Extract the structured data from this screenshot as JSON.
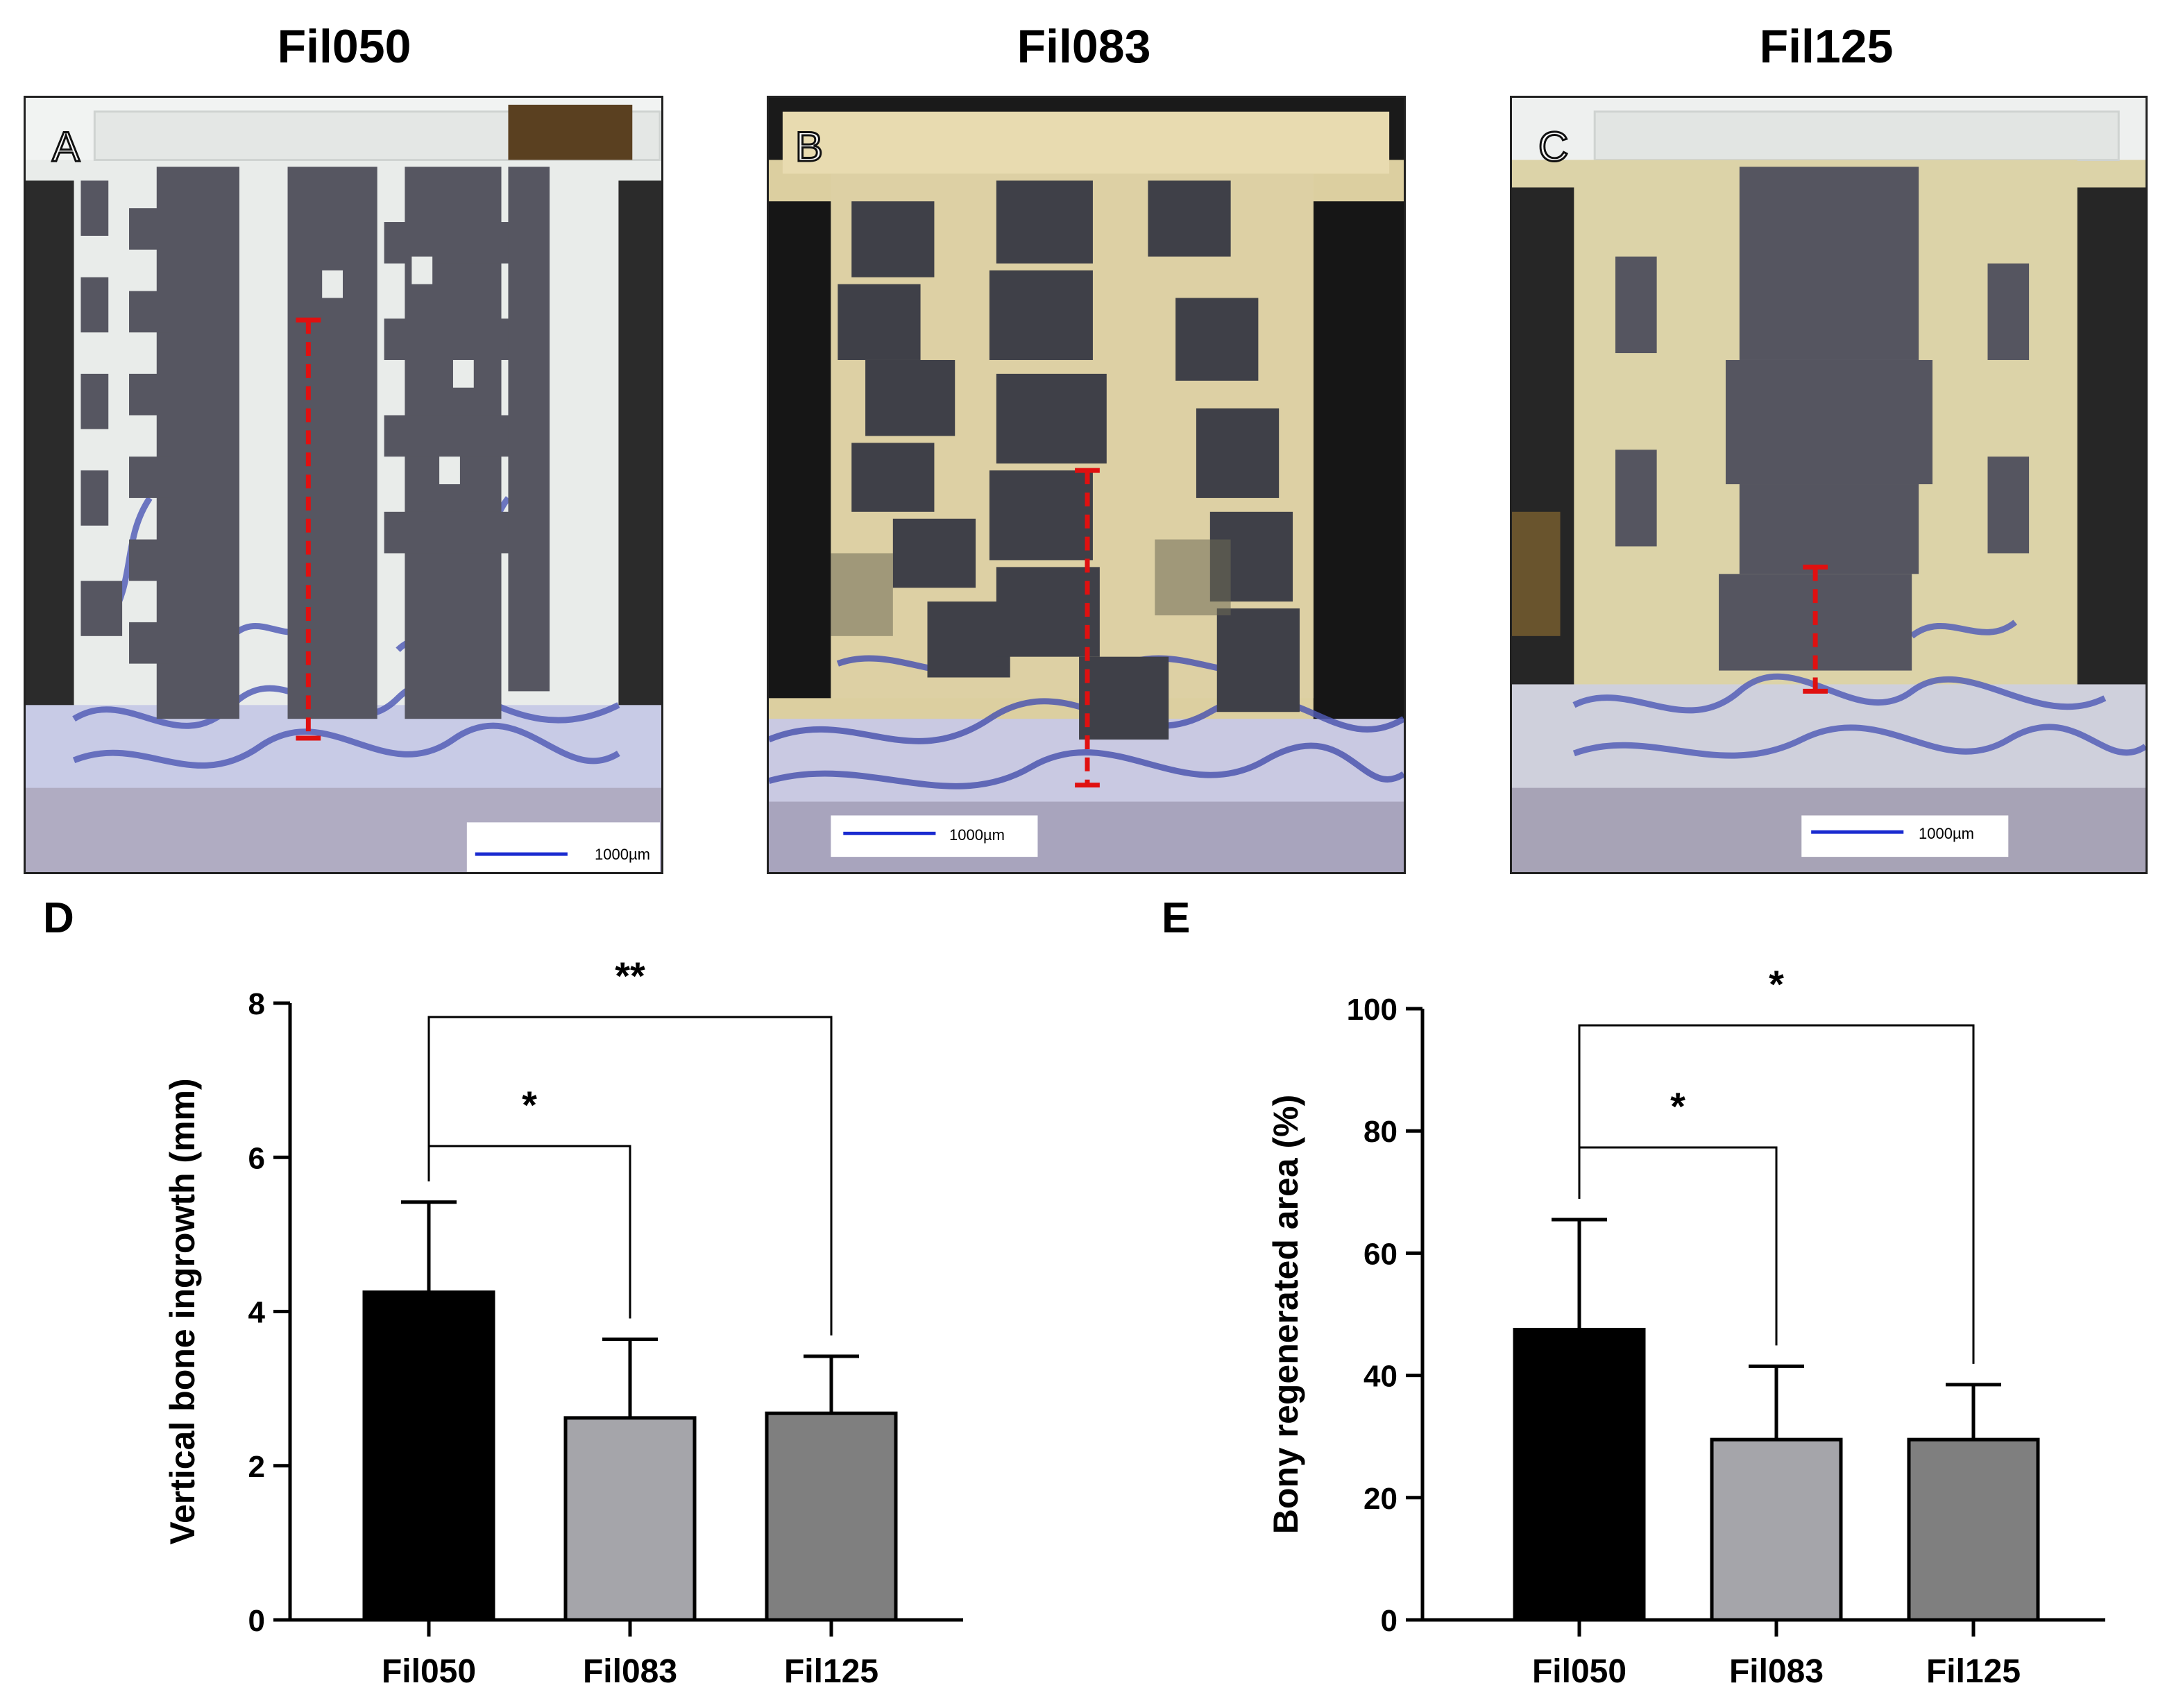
{
  "columns": {
    "a": "Fil050",
    "b": "Fil083",
    "c": "Fil125"
  },
  "panels": {
    "a_letter": "A",
    "b_letter": "B",
    "c_letter": "C",
    "scale_bar": "1000µm"
  },
  "colors": {
    "bone_stain": "#5560b8",
    "scaffold": "#555560",
    "resin_light": "#e9ecea",
    "resin_yellow": "#dccfa0",
    "measure_line": "#e01010",
    "scale_bar": "#1a2bd0"
  },
  "chart_data": [
    {
      "panel_letter": "D",
      "type": "bar",
      "categories": [
        "Fil050",
        "Fil083",
        "Fil125"
      ],
      "values": [
        4.25,
        2.62,
        2.68
      ],
      "error_upper": [
        5.42,
        3.64,
        3.42
      ],
      "bar_colors": [
        "#000000",
        "#a5a5aa",
        "#7f7f7f"
      ],
      "ylabel": "Vertical bone ingrowth (mm)",
      "ylim": [
        0,
        8
      ],
      "yticks": [
        "0",
        "2",
        "4",
        "6",
        "8"
      ],
      "significance": [
        {
          "from": "Fil050",
          "to": "Fil083",
          "label": "*"
        },
        {
          "from": "Fil050",
          "to": "Fil125",
          "label": "**"
        }
      ]
    },
    {
      "panel_letter": "E",
      "type": "bar",
      "categories": [
        "Fil050",
        "Fil083",
        "Fil125"
      ],
      "values": [
        47.5,
        29.5,
        29.5
      ],
      "error_upper": [
        65.5,
        41.5,
        38.5
      ],
      "bar_colors": [
        "#000000",
        "#a5a5aa",
        "#7f7f7f"
      ],
      "ylabel": "Bony regenerated area (%)",
      "ylim": [
        0,
        100
      ],
      "yticks": [
        "0",
        "20",
        "40",
        "60",
        "80",
        "100"
      ],
      "significance": [
        {
          "from": "Fil050",
          "to": "Fil083",
          "label": "*"
        },
        {
          "from": "Fil050",
          "to": "Fil125",
          "label": "*"
        }
      ]
    }
  ]
}
